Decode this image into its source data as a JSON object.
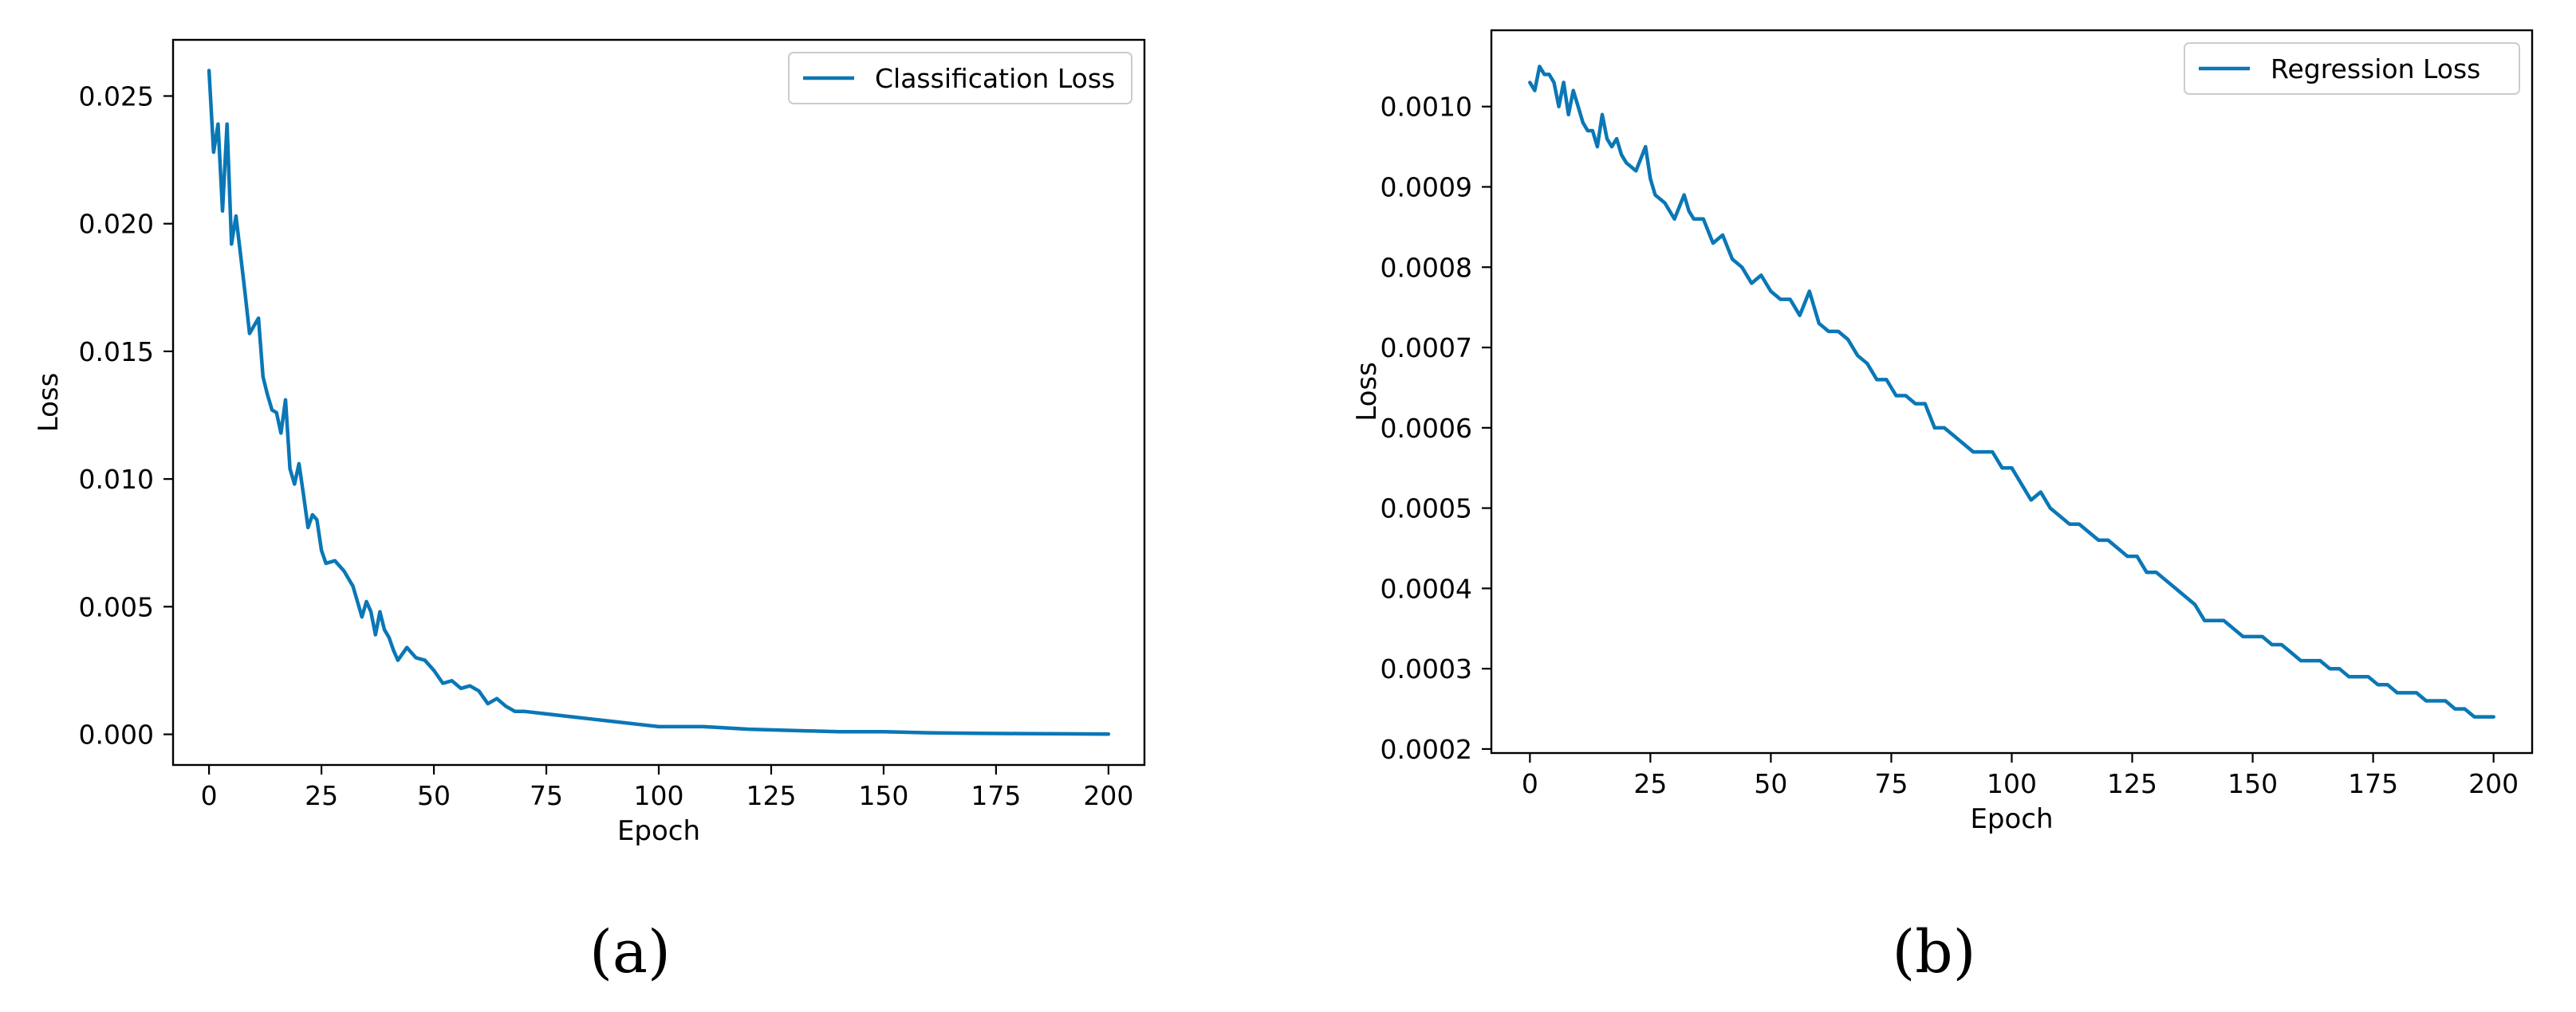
{
  "figure": {
    "panels": [
      {
        "caption": "(a)"
      },
      {
        "caption": "(b)"
      }
    ]
  },
  "chart_data": [
    {
      "type": "line",
      "title": "",
      "xlabel": "Epoch",
      "ylabel": "Loss",
      "xlim": [
        -8,
        208
      ],
      "ylim": [
        -0.0012,
        0.0272
      ],
      "xticks": [
        "0",
        "25",
        "50",
        "75",
        "100",
        "125",
        "150",
        "175",
        "200"
      ],
      "yticks": [
        "0.000",
        "0.005",
        "0.010",
        "0.015",
        "0.020",
        "0.025"
      ],
      "grid": false,
      "legend_position": "top-right",
      "color": "#0a77b6",
      "series": [
        {
          "name": "Classification Loss",
          "x": [
            0,
            1,
            2,
            3,
            4,
            5,
            6,
            7,
            8,
            9,
            10,
            11,
            12,
            13,
            14,
            15,
            16,
            17,
            18,
            19,
            20,
            21,
            22,
            23,
            24,
            25,
            26,
            28,
            30,
            32,
            34,
            35,
            36,
            37,
            38,
            39,
            40,
            41,
            42,
            44,
            46,
            48,
            50,
            52,
            54,
            56,
            58,
            60,
            62,
            64,
            66,
            68,
            70,
            75,
            80,
            85,
            90,
            95,
            100,
            110,
            120,
            130,
            140,
            150,
            160,
            170,
            180,
            190,
            200
          ],
          "y": [
            0.026,
            0.0228,
            0.0239,
            0.0205,
            0.0239,
            0.0192,
            0.0203,
            0.0188,
            0.0173,
            0.0157,
            0.016,
            0.0163,
            0.014,
            0.0133,
            0.0127,
            0.0126,
            0.0118,
            0.0131,
            0.0104,
            0.0098,
            0.0106,
            0.0094,
            0.0081,
            0.0086,
            0.0084,
            0.0072,
            0.0067,
            0.0068,
            0.0064,
            0.0058,
            0.0046,
            0.0052,
            0.0048,
            0.0039,
            0.0048,
            0.0041,
            0.0038,
            0.0033,
            0.0029,
            0.0034,
            0.003,
            0.0029,
            0.0025,
            0.002,
            0.0021,
            0.0018,
            0.0019,
            0.0017,
            0.0012,
            0.0014,
            0.0011,
            0.0009,
            0.0009,
            0.0008,
            0.0007,
            0.0006,
            0.0005,
            0.0004,
            0.0003,
            0.0003,
            0.0002,
            0.00015,
            0.0001,
            0.0001,
            6e-05,
            4e-05,
            3e-05,
            2e-05,
            1e-05
          ]
        }
      ]
    },
    {
      "type": "line",
      "title": "",
      "xlabel": "Epoch",
      "ylabel": "Loss",
      "xlim": [
        -8,
        208
      ],
      "ylim": [
        0.000195,
        0.001095
      ],
      "xticks": [
        "0",
        "25",
        "50",
        "75",
        "100",
        "125",
        "150",
        "175",
        "200"
      ],
      "yticks": [
        "0.0002",
        "0.0003",
        "0.0004",
        "0.0005",
        "0.0006",
        "0.0007",
        "0.0008",
        "0.0009",
        "0.0010"
      ],
      "grid": false,
      "legend_position": "top-right",
      "color": "#0a77b6",
      "series": [
        {
          "name": "Regression Loss",
          "x": [
            0,
            1,
            2,
            3,
            4,
            5,
            6,
            7,
            8,
            9,
            10,
            11,
            12,
            13,
            14,
            15,
            16,
            17,
            18,
            19,
            20,
            22,
            24,
            25,
            26,
            28,
            30,
            32,
            33,
            34,
            36,
            38,
            40,
            42,
            44,
            46,
            48,
            50,
            52,
            54,
            56,
            58,
            60,
            62,
            64,
            66,
            68,
            70,
            72,
            74,
            76,
            78,
            80,
            82,
            84,
            86,
            88,
            90,
            92,
            94,
            96,
            98,
            100,
            102,
            104,
            106,
            108,
            110,
            112,
            114,
            116,
            118,
            120,
            122,
            124,
            126,
            128,
            130,
            132,
            134,
            136,
            138,
            140,
            142,
            144,
            146,
            148,
            150,
            152,
            154,
            156,
            158,
            160,
            162,
            164,
            166,
            168,
            170,
            172,
            174,
            176,
            178,
            180,
            182,
            184,
            186,
            188,
            190,
            192,
            194,
            196,
            198,
            200
          ],
          "y": [
            0.00103,
            0.00102,
            0.00105,
            0.00104,
            0.00104,
            0.00103,
            0.001,
            0.00103,
            0.00099,
            0.00102,
            0.001,
            0.00098,
            0.00097,
            0.00097,
            0.00095,
            0.00099,
            0.00096,
            0.00095,
            0.00096,
            0.00094,
            0.00093,
            0.00092,
            0.00095,
            0.00091,
            0.00089,
            0.00088,
            0.00086,
            0.00089,
            0.00087,
            0.00086,
            0.00086,
            0.00083,
            0.00084,
            0.00081,
            0.0008,
            0.00078,
            0.00079,
            0.00077,
            0.00076,
            0.00076,
            0.00074,
            0.00077,
            0.00073,
            0.00072,
            0.00072,
            0.00071,
            0.00069,
            0.00068,
            0.00066,
            0.00066,
            0.00064,
            0.00064,
            0.00063,
            0.00063,
            0.0006,
            0.0006,
            0.00059,
            0.00058,
            0.00057,
            0.00057,
            0.00057,
            0.00055,
            0.00055,
            0.00053,
            0.00051,
            0.00052,
            0.0005,
            0.00049,
            0.00048,
            0.00048,
            0.00047,
            0.00046,
            0.00046,
            0.00045,
            0.00044,
            0.00044,
            0.00042,
            0.00042,
            0.00041,
            0.0004,
            0.00039,
            0.00038,
            0.00036,
            0.00036,
            0.00036,
            0.00035,
            0.00034,
            0.00034,
            0.00034,
            0.00033,
            0.00033,
            0.00032,
            0.00031,
            0.00031,
            0.00031,
            0.0003,
            0.0003,
            0.00029,
            0.00029,
            0.00029,
            0.00028,
            0.00028,
            0.00027,
            0.00027,
            0.00027,
            0.00026,
            0.00026,
            0.00026,
            0.00025,
            0.00025,
            0.00024,
            0.00024,
            0.00024
          ]
        }
      ]
    }
  ]
}
